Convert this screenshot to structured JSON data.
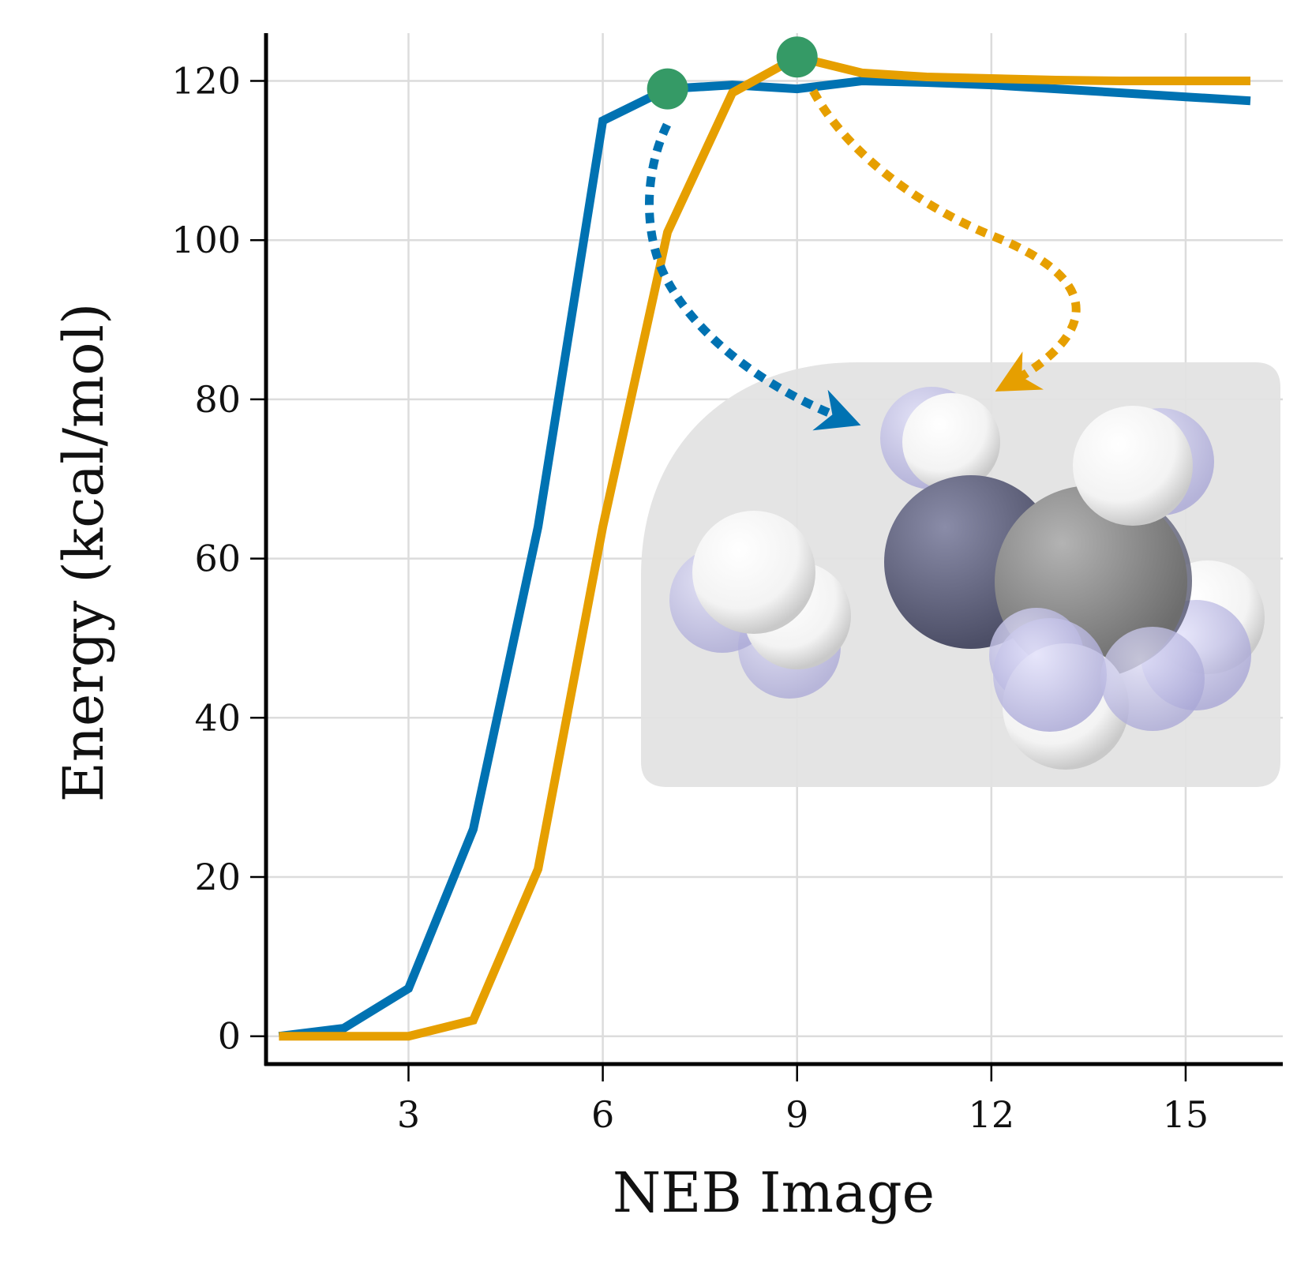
{
  "chart_data": {
    "type": "line",
    "xlabel": "NEB Image",
    "ylabel": "Energy (kcal/mol)",
    "xlim": [
      0.8,
      16.5
    ],
    "ylim": [
      -3.5,
      126
    ],
    "xticks": [
      3,
      6,
      9,
      12,
      15
    ],
    "yticks": [
      0,
      20,
      40,
      60,
      80,
      100,
      120
    ],
    "grid": true,
    "legend": "none",
    "series": [
      {
        "color": "#0072b2",
        "x": [
          1,
          2,
          3,
          4,
          5,
          6,
          7,
          8,
          9,
          10,
          11,
          12,
          13,
          14,
          15,
          16
        ],
        "y": [
          0,
          1,
          6,
          26,
          64,
          115,
          119,
          119.5,
          119,
          120,
          119.8,
          119.5,
          119,
          118.5,
          118,
          117.5
        ]
      },
      {
        "color": "#e69f00",
        "x": [
          1,
          2,
          3,
          4,
          5,
          6,
          7,
          8,
          9,
          10,
          11,
          12,
          13,
          14,
          15,
          16
        ],
        "y": [
          0,
          0,
          0,
          2,
          21,
          64,
          101,
          118.5,
          123,
          121,
          120.5,
          120.3,
          120.1,
          120,
          120,
          120
        ]
      }
    ],
    "annotations": [
      {
        "type": "marker",
        "x": 7,
        "y": 119,
        "color": "#359a66"
      },
      {
        "type": "marker",
        "x": 9,
        "y": 123,
        "color": "#359a66"
      },
      {
        "type": "inset-image",
        "content": "space-filling molecular model of a reacting molecule",
        "background": "#e2e2e2"
      }
    ]
  }
}
